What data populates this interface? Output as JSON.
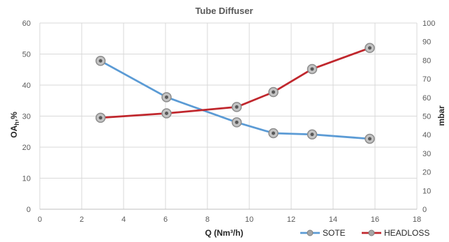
{
  "chart_data": {
    "type": "line",
    "title": "Tube Diffuser",
    "xlabel": "Q (Nm³/h)",
    "ylabel_left": {
      "main": "OA",
      "sub": "h",
      "rest": ",%"
    },
    "ylabel_right": "mbar",
    "xlim": [
      0,
      18
    ],
    "xticks": [
      "0",
      "2",
      "4",
      "6",
      "8",
      "10",
      "12",
      "14",
      "16",
      "18"
    ],
    "ylim_left": [
      0,
      60
    ],
    "yticks_left": [
      "0",
      "10",
      "20",
      "30",
      "40",
      "50",
      "60"
    ],
    "ylim_right": [
      0,
      100
    ],
    "yticks_right": [
      "0",
      "10",
      "20",
      "30",
      "40",
      "50",
      "60",
      "70",
      "80",
      "90",
      "100"
    ],
    "grid": true,
    "legend_position": "bottom-right",
    "series": [
      {
        "name": "SOTE",
        "axis": "left",
        "color": "#5b9bd5",
        "x": [
          2.9,
          6.05,
          9.4,
          11.15,
          13.0,
          15.75
        ],
        "y": [
          47.8,
          36.1,
          28.0,
          24.5,
          24.1,
          22.7
        ]
      },
      {
        "name": "HEADLOSS",
        "axis": "right",
        "color": "#c0272d",
        "x": [
          2.9,
          6.05,
          9.4,
          11.15,
          13.0,
          15.75
        ],
        "y": [
          49.1,
          51.5,
          54.9,
          62.9,
          75.3,
          86.6
        ]
      }
    ]
  }
}
